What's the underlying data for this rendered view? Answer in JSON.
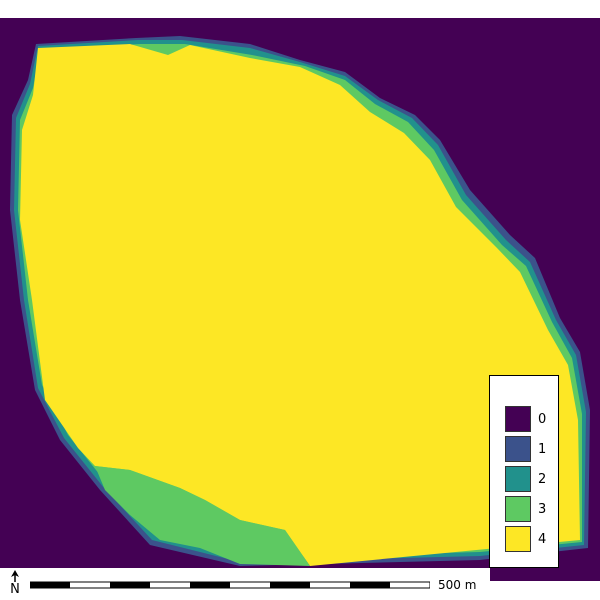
{
  "map": {
    "colors": {
      "class_0": "#440154",
      "class_1": "#3b528b",
      "class_2": "#21918c",
      "class_3": "#5ec962",
      "class_4": "#fde725"
    }
  },
  "legend": {
    "items": [
      {
        "label": "0",
        "color": "#440154"
      },
      {
        "label": "1",
        "color": "#3b528b"
      },
      {
        "label": "2",
        "color": "#21918c"
      },
      {
        "label": "3",
        "color": "#5ec962"
      },
      {
        "label": "4",
        "color": "#fde725"
      }
    ]
  },
  "scale": {
    "label": "500 m"
  },
  "north": {
    "label": "N",
    "icon": "north-arrow-icon"
  }
}
